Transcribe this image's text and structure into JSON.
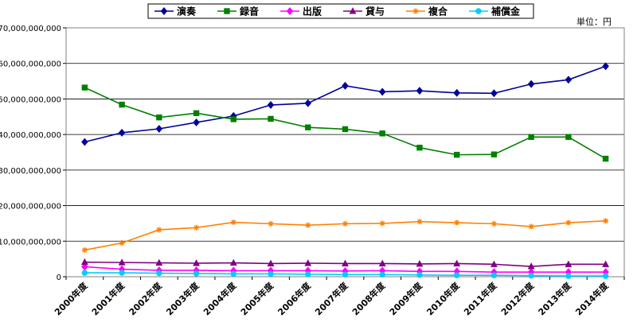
{
  "chart_data": {
    "type": "line",
    "title": "",
    "unit_label": "単位：円",
    "categories": [
      "2000年度",
      "2001年度",
      "2002年度",
      "2003年度",
      "2004年度",
      "2005年度",
      "2006年度",
      "2007年度",
      "2008年度",
      "2009年度",
      "2010年度",
      "2011年度",
      "2012年度",
      "2013年度",
      "2014年度"
    ],
    "ylim": [
      0,
      70000000000
    ],
    "yticks": [
      0,
      10000000000,
      20000000000,
      30000000000,
      40000000000,
      50000000000,
      60000000000,
      70000000000
    ],
    "ytick_labels": [
      "0",
      "10,000,000,000",
      "20,000,000,000",
      "30,000,000,000",
      "40,000,000,000",
      "50,000,000,000",
      "60,000,000,000",
      "70,000,000,000"
    ],
    "grid": true,
    "legend_position": "top",
    "series": [
      {
        "name": "演奏",
        "color": "#000099",
        "marker": "diamond",
        "values": [
          37900000000,
          40500000000,
          41600000000,
          43400000000,
          45200000000,
          48300000000,
          48800000000,
          53700000000,
          52000000000,
          52300000000,
          51700000000,
          51600000000,
          54200000000,
          55400000000,
          59200000000
        ]
      },
      {
        "name": "録音",
        "color": "#008000",
        "marker": "square",
        "values": [
          53200000000,
          48400000000,
          44800000000,
          46000000000,
          44300000000,
          44400000000,
          42000000000,
          41500000000,
          40300000000,
          36300000000,
          34300000000,
          34400000000,
          39300000000,
          39300000000,
          33200000000
        ]
      },
      {
        "name": "出版",
        "color": "#ff00ff",
        "marker": "diamond",
        "values": [
          2800000000,
          2100000000,
          1800000000,
          1800000000,
          1700000000,
          1700000000,
          1700000000,
          1600000000,
          1700000000,
          1500000000,
          1500000000,
          1300000000,
          1300000000,
          1300000000,
          1300000000
        ]
      },
      {
        "name": "貸与",
        "color": "#800080",
        "marker": "triangle",
        "values": [
          4100000000,
          4000000000,
          3900000000,
          3800000000,
          3900000000,
          3700000000,
          3800000000,
          3700000000,
          3700000000,
          3600000000,
          3700000000,
          3500000000,
          2900000000,
          3500000000,
          3500000000
        ]
      },
      {
        "name": "複合",
        "color": "#ff8000",
        "marker": "star",
        "values": [
          7500000000,
          9500000000,
          13200000000,
          13800000000,
          15300000000,
          14900000000,
          14500000000,
          14900000000,
          15000000000,
          15500000000,
          15200000000,
          14900000000,
          14100000000,
          15200000000,
          15700000000
        ]
      },
      {
        "name": "補償金",
        "color": "#00ccff",
        "marker": "circle",
        "values": [
          1100000000,
          1100000000,
          1000000000,
          900000000,
          800000000,
          800000000,
          700000000,
          600000000,
          600000000,
          500000000,
          400000000,
          400000000,
          300000000,
          200000000,
          200000000
        ]
      }
    ]
  }
}
